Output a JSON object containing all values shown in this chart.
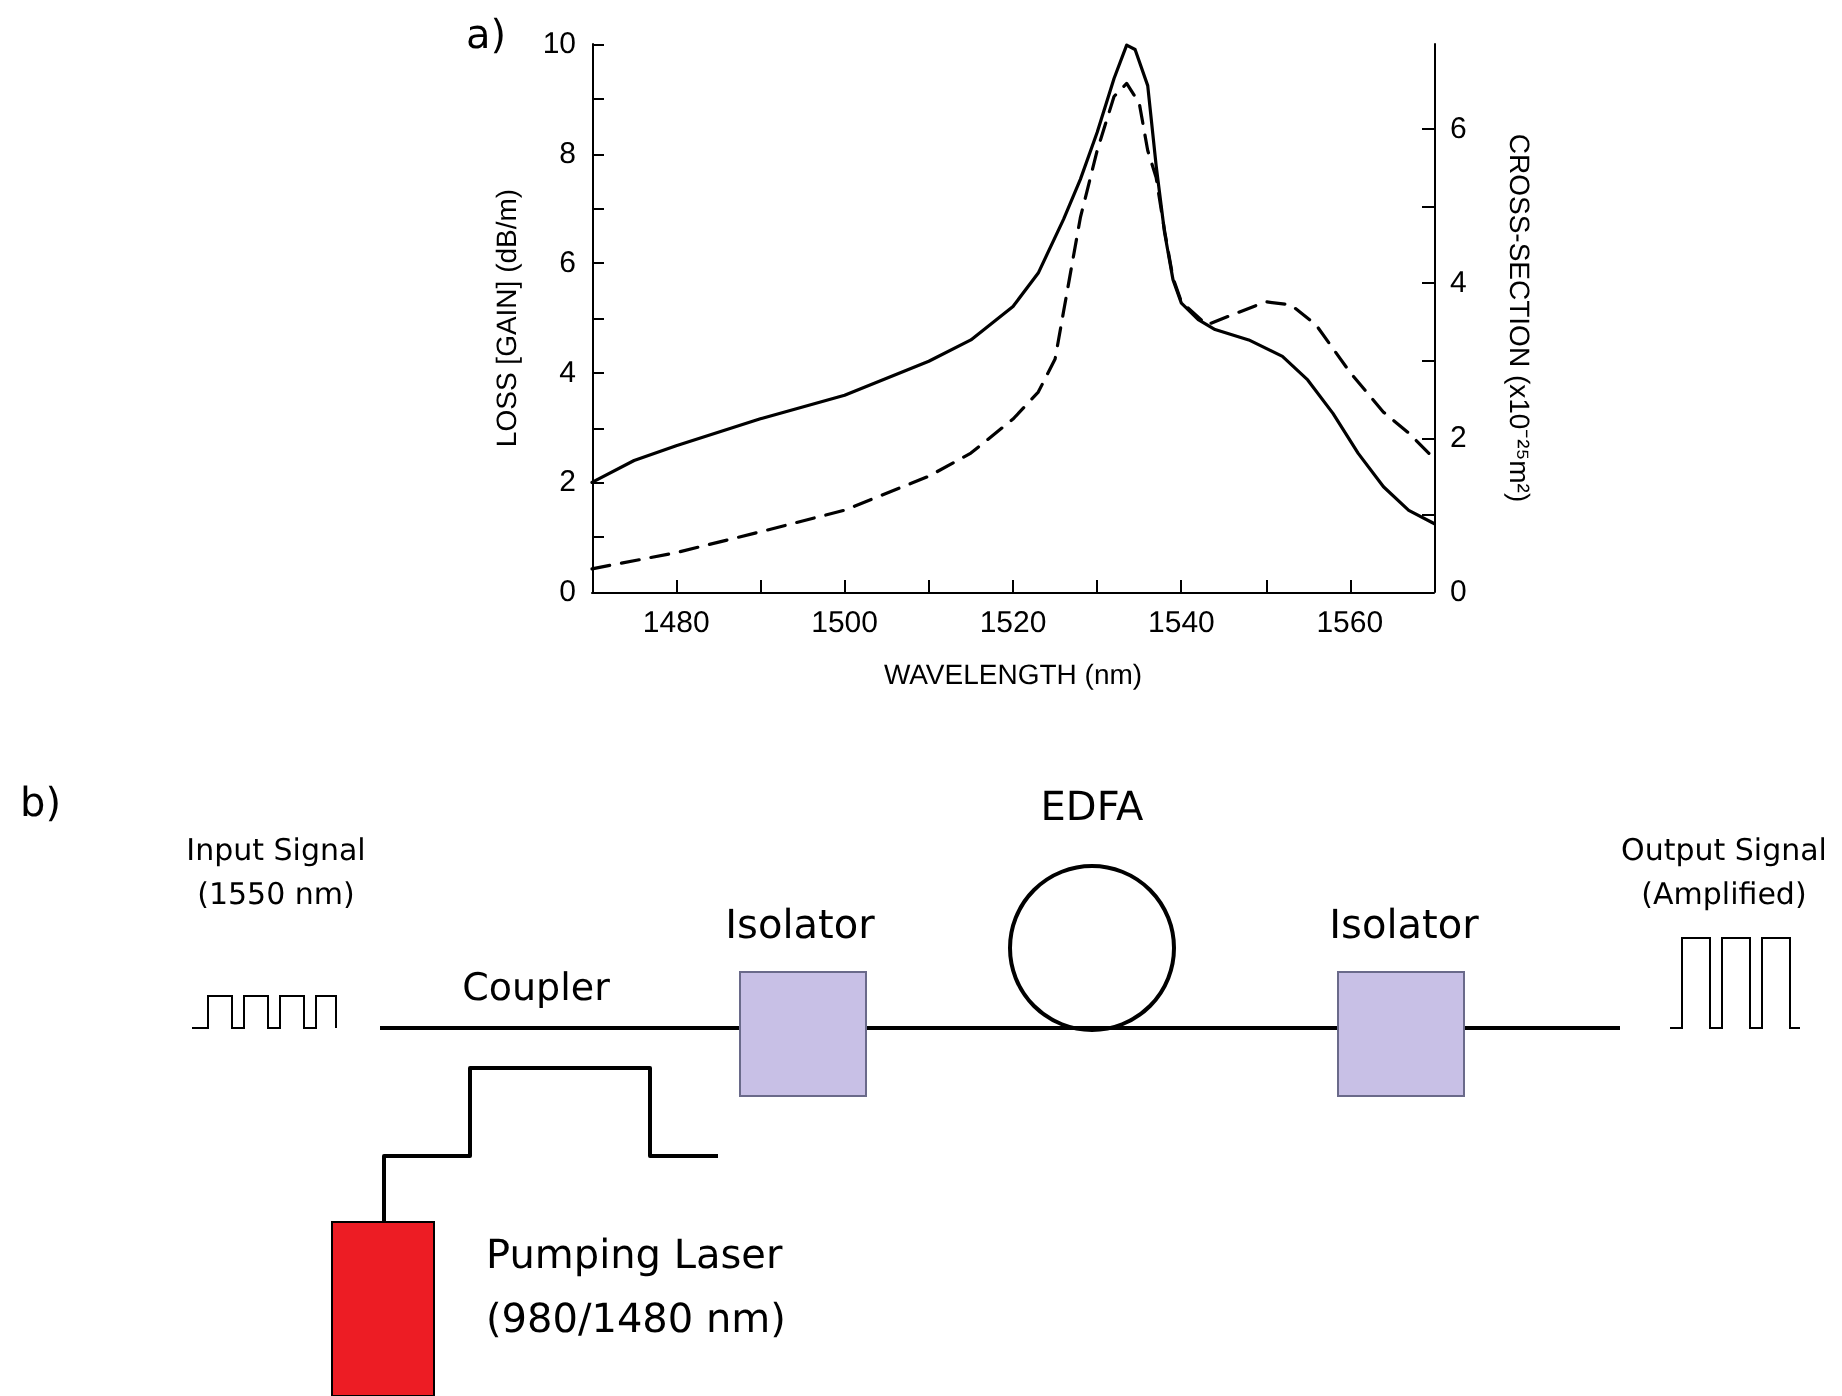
{
  "chart_data": [
    {
      "type": "line",
      "title": "a)",
      "xlabel": "WAVELENGTH (nm)",
      "ylabel": "LOSS [GAIN] (dB/m)",
      "y2label": "CROSS-SECTION (x10⁻²⁵m²)",
      "xlim": [
        1470,
        1570
      ],
      "xticks": [
        1480,
        {
          "value": 1490,
          "label": null
        },
        1500,
        {
          "value": 1510,
          "label": null
        },
        1520,
        {
          "value": 1530,
          "label": null
        },
        1540,
        {
          "value": 1550,
          "label": null
        },
        1560
      ],
      "ylim": [
        0,
        10
      ],
      "yticks": [
        0,
        {
          "value": 1,
          "label": null
        },
        2,
        {
          "value": 3,
          "label": null
        },
        4,
        {
          "value": 5,
          "label": null
        },
        6,
        {
          "value": 7,
          "label": null
        },
        8,
        {
          "value": 9,
          "label": null
        },
        10
      ],
      "y2lim": [
        0,
        7.1
      ],
      "y2ticks": [
        0,
        {
          "value": 1,
          "label": null
        },
        2,
        {
          "value": 3,
          "label": null
        },
        4,
        {
          "value": 5,
          "label": null
        },
        6
      ],
      "marker": "none",
      "grid": false,
      "series": [
        {
          "color": "#000000",
          "line_style": "solid",
          "x": [
            1470,
            1475,
            1480,
            1490,
            1500,
            1510,
            1515,
            1520,
            1523,
            1526,
            1528,
            1530,
            1532,
            1533.5,
            1534.5,
            1536,
            1537,
            1538,
            1539,
            1540,
            1542,
            1544,
            1548,
            1552,
            1555,
            1558,
            1561,
            1564,
            1567,
            1570
          ],
          "values": [
            2.0,
            2.4,
            2.67,
            3.16,
            3.59,
            4.21,
            4.6,
            5.21,
            5.82,
            6.8,
            7.53,
            8.39,
            9.37,
            9.98,
            9.9,
            9.24,
            7.78,
            6.56,
            5.7,
            5.27,
            4.97,
            4.79,
            4.6,
            4.3,
            3.87,
            3.26,
            2.53,
            1.92,
            1.49,
            1.25
          ]
        },
        {
          "color": "#000000",
          "line_style": "dashed",
          "axis": "y2",
          "x": [
            1470,
            1480,
            1490,
            1500,
            1510,
            1515,
            1520,
            1523,
            1525,
            1526,
            1528,
            1530,
            1532,
            1533.5,
            1535,
            1536,
            1537,
            1538,
            1539,
            1540,
            1543,
            1546,
            1550,
            1553,
            1556,
            1560,
            1564,
            1567,
            1570
          ],
          "values": [
            0.3,
            0.51,
            0.78,
            1.06,
            1.5,
            1.8,
            2.24,
            2.59,
            3.02,
            3.63,
            4.85,
            5.72,
            6.42,
            6.59,
            6.33,
            5.72,
            5.37,
            4.68,
            4.07,
            3.76,
            3.46,
            3.59,
            3.76,
            3.72,
            3.46,
            2.85,
            2.33,
            2.06,
            1.73
          ]
        }
      ]
    },
    {
      "type": "other",
      "title": "b)",
      "annotations": [
        "Input Signal",
        "(1550 nm)",
        "Coupler",
        "Isolator",
        "EDFA",
        "Isolator",
        "Output Signal",
        "(Amplified)",
        "Pumping Laser",
        "(980/1480 nm)"
      ]
    }
  ]
}
